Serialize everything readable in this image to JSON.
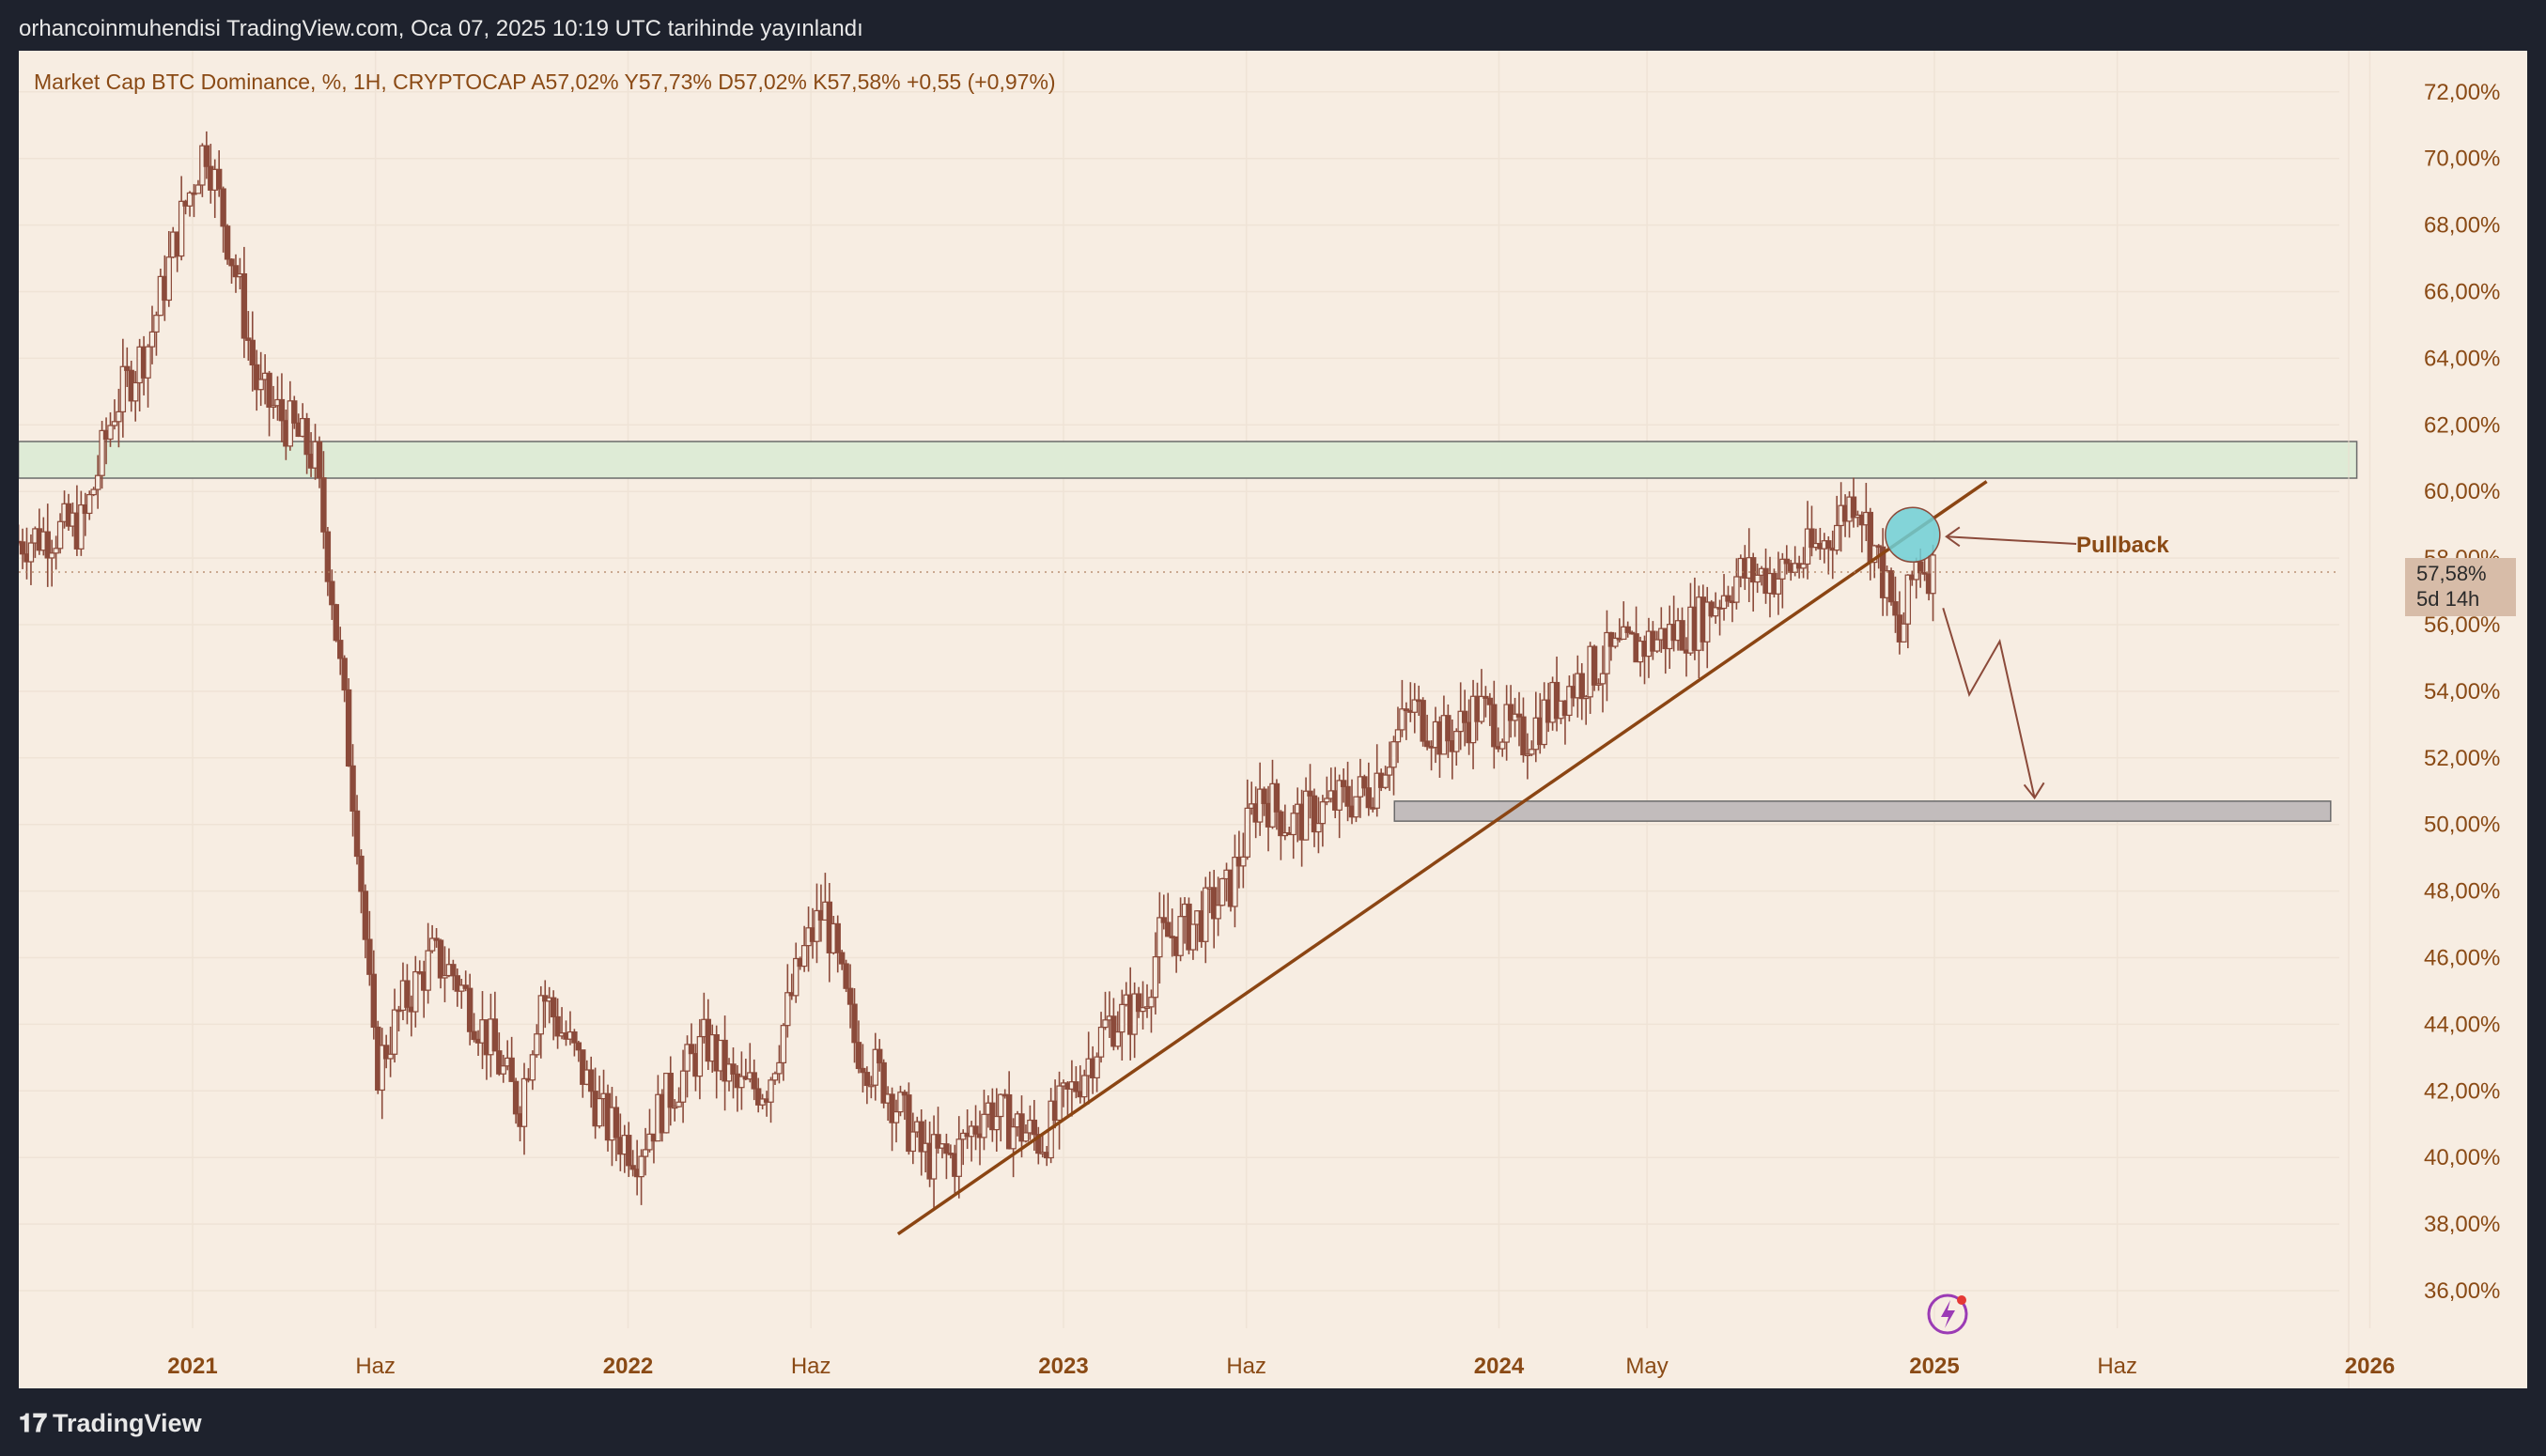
{
  "header": {
    "publication_text": "orhancoinmuhendisi TradingView.com, Oca 07, 2025 10:19 UTC tarihinde yayınlandı"
  },
  "legend": {
    "text": "Market Cap BTC Dominance, %, 1H, CRYPTOCAP  A57,02%  Y57,73%  D57,02%  K57,58%  +0,55 (+0,97%)"
  },
  "price_label": {
    "value": "57,58%",
    "countdown": "5d 14h"
  },
  "annotation": {
    "pullback": "Pullback"
  },
  "footer": {
    "brand": "TradingView"
  },
  "colors": {
    "background": "#f7ede2",
    "candle": "#8b4a3a",
    "trendline": "#8b4513",
    "resistance_zone": "#deebd6",
    "support_zone": "#c2bcbc",
    "pullback_circle": "#6fcfd6",
    "grid": "#efe3d6",
    "axis_text": "#8a4a15"
  },
  "chart_data": {
    "type": "candlestick",
    "y_axis": {
      "ylim": [
        35,
        73
      ],
      "ticks": [
        "72,00%",
        "70,00%",
        "68,00%",
        "66,00%",
        "64,00%",
        "62,00%",
        "60,00%",
        "58,00%",
        "56,00%",
        "54,00%",
        "52,00%",
        "50,00%",
        "48,00%",
        "46,00%",
        "44,00%",
        "42,00%",
        "40,00%",
        "38,00%",
        "36,00%"
      ]
    },
    "x_axis": {
      "ticks": [
        {
          "label": "2021",
          "t": 2021.0,
          "bold": true
        },
        {
          "label": "Haz",
          "t": 2021.42,
          "bold": false
        },
        {
          "label": "2022",
          "t": 2022.0,
          "bold": true
        },
        {
          "label": "Haz",
          "t": 2022.42,
          "bold": false
        },
        {
          "label": "2023",
          "t": 2023.0,
          "bold": true
        },
        {
          "label": "Haz",
          "t": 2023.42,
          "bold": false
        },
        {
          "label": "2024",
          "t": 2024.0,
          "bold": true
        },
        {
          "label": "May",
          "t": 2024.34,
          "bold": false
        },
        {
          "label": "2025",
          "t": 2025.0,
          "bold": true
        },
        {
          "label": "Haz",
          "t": 2025.42,
          "bold": false
        },
        {
          "label": "2026",
          "t": 2026.0,
          "bold": true
        }
      ]
    },
    "path_points": [
      [
        2020.6,
        58.5
      ],
      [
        2020.75,
        59.0
      ],
      [
        2020.82,
        62.5
      ],
      [
        2020.9,
        64.5
      ],
      [
        2020.97,
        68.0
      ],
      [
        2021.03,
        70.5
      ],
      [
        2021.1,
        66.5
      ],
      [
        2021.15,
        63.0
      ],
      [
        2021.22,
        62.0
      ],
      [
        2021.28,
        61.0
      ],
      [
        2021.32,
        57.0
      ],
      [
        2021.38,
        49.5
      ],
      [
        2021.42,
        42.5
      ],
      [
        2021.48,
        44.5
      ],
      [
        2021.55,
        46.0
      ],
      [
        2021.6,
        45.5
      ],
      [
        2021.68,
        43.5
      ],
      [
        2021.75,
        41.5
      ],
      [
        2021.8,
        45.0
      ],
      [
        2021.88,
        43.0
      ],
      [
        2021.95,
        41.0
      ],
      [
        2022.02,
        40.2
      ],
      [
        2022.1,
        42.0
      ],
      [
        2022.18,
        43.5
      ],
      [
        2022.25,
        42.0
      ],
      [
        2022.32,
        42.2
      ],
      [
        2022.4,
        46.0
      ],
      [
        2022.45,
        47.5
      ],
      [
        2022.52,
        43.5
      ],
      [
        2022.6,
        42.0
      ],
      [
        2022.68,
        40.0
      ],
      [
        2022.75,
        40.0
      ],
      [
        2022.82,
        41.5
      ],
      [
        2022.88,
        41.0
      ],
      [
        2022.95,
        40.5
      ],
      [
        2023.02,
        42.0
      ],
      [
        2023.1,
        44.0
      ],
      [
        2023.18,
        44.5
      ],
      [
        2023.22,
        46.5
      ],
      [
        2023.3,
        47.0
      ],
      [
        2023.38,
        48.0
      ],
      [
        2023.45,
        51.0
      ],
      [
        2023.52,
        50.0
      ],
      [
        2023.6,
        50.5
      ],
      [
        2023.7,
        51.0
      ],
      [
        2023.8,
        53.5
      ],
      [
        2023.88,
        52.5
      ],
      [
        2023.95,
        53.5
      ],
      [
        2024.05,
        52.5
      ],
      [
        2024.15,
        54.0
      ],
      [
        2024.25,
        55.0
      ],
      [
        2024.35,
        55.5
      ],
      [
        2024.45,
        56.0
      ],
      [
        2024.55,
        57.5
      ],
      [
        2024.65,
        57.5
      ],
      [
        2024.75,
        58.5
      ],
      [
        2024.82,
        60.0
      ],
      [
        2024.88,
        57.5
      ],
      [
        2024.92,
        55.5
      ],
      [
        2024.96,
        58.0
      ],
      [
        2025.0,
        57.6
      ]
    ],
    "trendline": {
      "from": [
        2022.62,
        37.7
      ],
      "to": [
        2025.12,
        60.3
      ]
    },
    "zones": [
      {
        "name": "resistance-zone",
        "t_from": 2020.6,
        "t_to": 2025.97,
        "y_from": 60.4,
        "y_to": 61.5
      },
      {
        "name": "support-zone",
        "t_from": 2023.76,
        "t_to": 2025.91,
        "y_from": 50.1,
        "y_to": 50.7
      }
    ],
    "projection": [
      [
        2025.02,
        56.5
      ],
      [
        2025.08,
        53.9
      ],
      [
        2025.15,
        55.5
      ],
      [
        2025.23,
        50.8
      ]
    ],
    "pullback_circle": {
      "t": 2024.95,
      "y": 58.7
    },
    "current_price": 57.58
  }
}
